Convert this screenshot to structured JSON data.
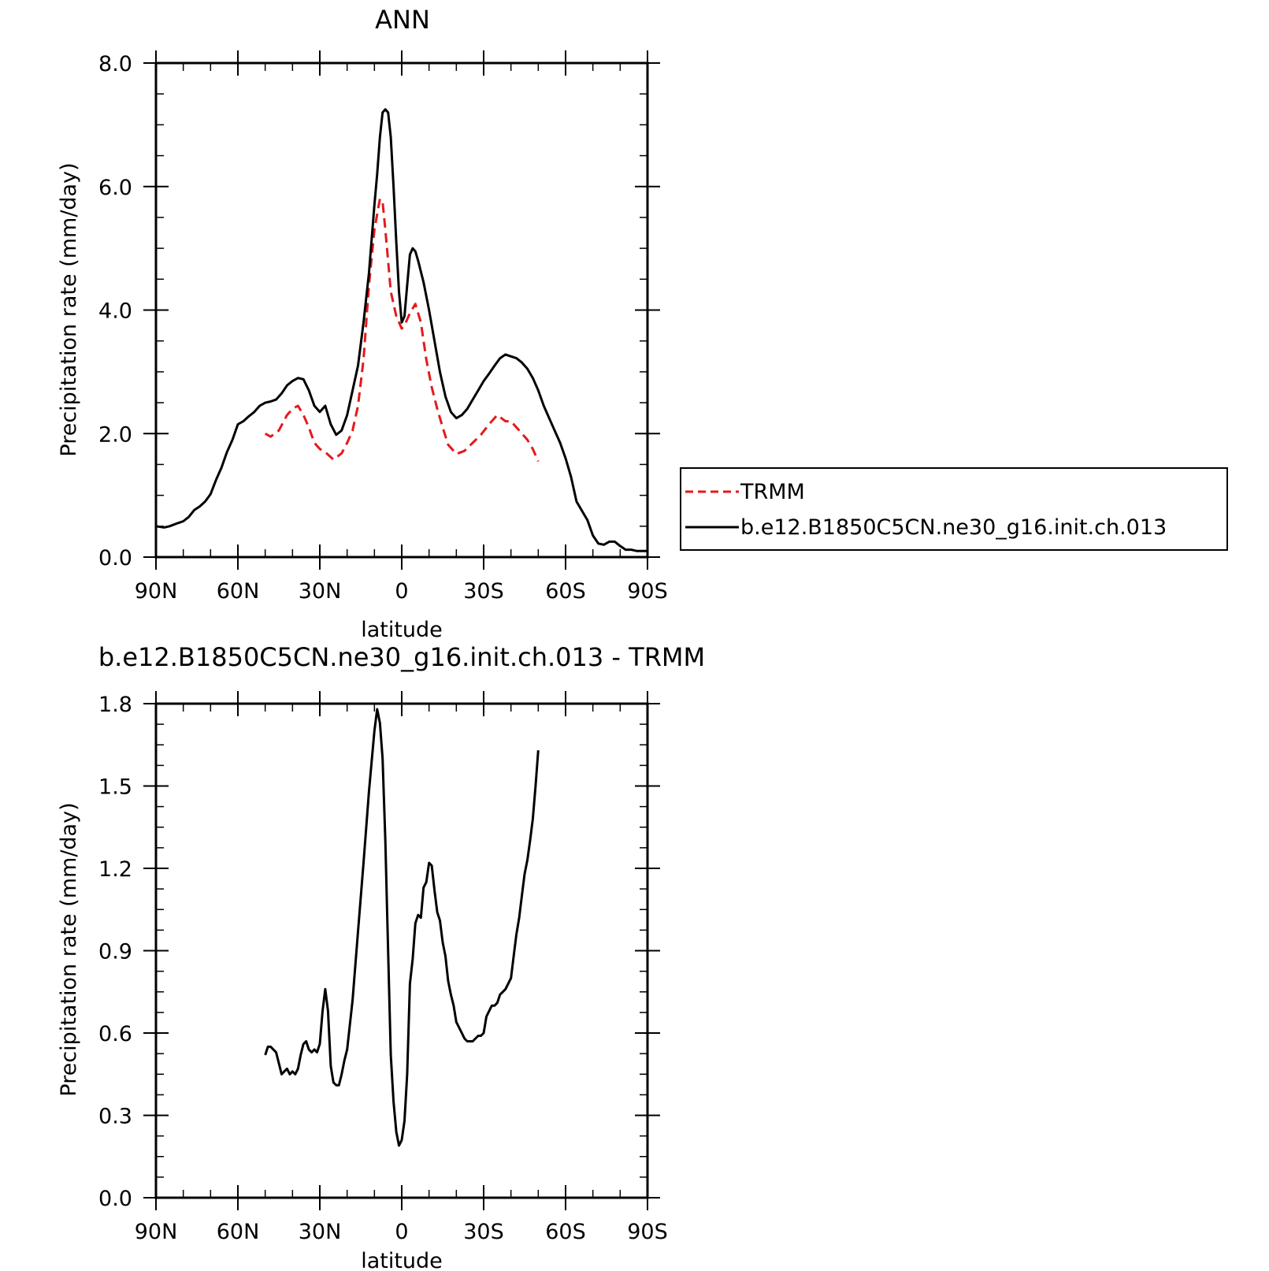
{
  "chart_data": [
    {
      "type": "line",
      "title": "ANN",
      "xlabel": "latitude",
      "ylabel": "Precipitation rate (mm/day)",
      "xlim": [
        90,
        -90
      ],
      "ylim": [
        0,
        8
      ],
      "xticks": [
        90,
        60,
        30,
        0,
        -30,
        -60,
        -90
      ],
      "xtick_labels": [
        "90N",
        "60N",
        "30N",
        "0",
        "30S",
        "60S",
        "90S"
      ],
      "yticks": [
        0,
        2,
        4,
        6,
        8
      ],
      "ytick_labels": [
        "0.0",
        "2.0",
        "4.0",
        "6.0",
        "8.0"
      ],
      "legend": "right",
      "series": [
        {
          "name": "TRMM",
          "color": "#e31a1c",
          "dash": true,
          "x": [
            50,
            48,
            45,
            42,
            40,
            38,
            36,
            34,
            32,
            30,
            28,
            25,
            22,
            20,
            18,
            16,
            14,
            12,
            10,
            8,
            7,
            6,
            5,
            4,
            2,
            0,
            -1,
            -3,
            -5,
            -7,
            -9,
            -11,
            -13,
            -15,
            -17,
            -20,
            -23,
            -26,
            -29,
            -32,
            -35,
            -38,
            -40,
            -43,
            -46,
            -48,
            -50
          ],
          "y": [
            2.0,
            1.95,
            2.05,
            2.3,
            2.4,
            2.45,
            2.3,
            2.1,
            1.85,
            1.75,
            1.7,
            1.58,
            1.68,
            1.85,
            2.05,
            2.45,
            3.2,
            4.4,
            5.3,
            5.8,
            5.75,
            5.3,
            4.8,
            4.3,
            3.9,
            3.7,
            3.75,
            3.95,
            4.1,
            3.8,
            3.2,
            2.75,
            2.4,
            2.1,
            1.82,
            1.67,
            1.72,
            1.85,
            1.98,
            2.15,
            2.3,
            2.2,
            2.2,
            2.05,
            1.9,
            1.75,
            1.55
          ]
        },
        {
          "name": "b.e12.B1850C5CN.ne30_g16.init.ch.013",
          "color": "#000000",
          "dash": false,
          "x": [
            90,
            87,
            85,
            82,
            80,
            78,
            76,
            74,
            72,
            70,
            68,
            66,
            64,
            62,
            60,
            58,
            56,
            54,
            52,
            50,
            48,
            46,
            44,
            42,
            40,
            38,
            36,
            34,
            32,
            30,
            28,
            26,
            24,
            22,
            20,
            18,
            16,
            14,
            12,
            10,
            9,
            8,
            7,
            6,
            5,
            4,
            3,
            2,
            1,
            0,
            -1,
            -2,
            -3,
            -4,
            -5,
            -6,
            -8,
            -10,
            -12,
            -14,
            -16,
            -18,
            -20,
            -22,
            -24,
            -26,
            -28,
            -30,
            -32,
            -34,
            -36,
            -38,
            -40,
            -42,
            -44,
            -46,
            -48,
            -50,
            -52,
            -54,
            -56,
            -58,
            -60,
            -62,
            -64,
            -66,
            -68,
            -70,
            -72,
            -74,
            -76,
            -78,
            -80,
            -82,
            -84,
            -86,
            -88,
            -90
          ],
          "y": [
            0.5,
            0.48,
            0.5,
            0.55,
            0.58,
            0.65,
            0.76,
            0.82,
            0.9,
            1.02,
            1.25,
            1.45,
            1.7,
            1.9,
            2.15,
            2.2,
            2.28,
            2.35,
            2.45,
            2.5,
            2.52,
            2.55,
            2.65,
            2.78,
            2.85,
            2.9,
            2.88,
            2.7,
            2.45,
            2.35,
            2.45,
            2.15,
            1.98,
            2.05,
            2.3,
            2.7,
            3.1,
            3.8,
            4.6,
            5.7,
            6.2,
            6.8,
            7.2,
            7.25,
            7.2,
            6.8,
            6.0,
            5.1,
            4.3,
            3.8,
            3.9,
            4.4,
            4.9,
            5.0,
            4.95,
            4.8,
            4.45,
            4.0,
            3.5,
            3.0,
            2.6,
            2.35,
            2.25,
            2.3,
            2.4,
            2.55,
            2.7,
            2.85,
            2.97,
            3.1,
            3.22,
            3.28,
            3.25,
            3.22,
            3.15,
            3.05,
            2.9,
            2.7,
            2.45,
            2.25,
            2.05,
            1.85,
            1.6,
            1.3,
            0.9,
            0.75,
            0.6,
            0.35,
            0.22,
            0.2,
            0.25,
            0.25,
            0.18,
            0.12,
            0.12,
            0.1,
            0.1,
            0.1
          ]
        }
      ]
    },
    {
      "type": "line",
      "title": "b.e12.B1850C5CN.ne30_g16.init.ch.013 - TRMM",
      "xlabel": "latitude",
      "ylabel": "Precipitation rate (mm/day)",
      "xlim": [
        90,
        -90
      ],
      "ylim": [
        0,
        1.8
      ],
      "xticks": [
        90,
        60,
        30,
        0,
        -30,
        -60,
        -90
      ],
      "xtick_labels": [
        "90N",
        "60N",
        "30N",
        "0",
        "30S",
        "60S",
        "90S"
      ],
      "yticks": [
        0,
        0.3,
        0.6,
        0.9,
        1.2,
        1.5,
        1.8
      ],
      "ytick_labels": [
        "0.0",
        "0.3",
        "0.6",
        "0.9",
        "1.2",
        "1.5",
        "1.8"
      ],
      "series": [
        {
          "color": "#000000",
          "dash": false,
          "x": [
            50,
            49,
            48,
            46,
            44,
            43,
            42,
            41,
            40,
            39,
            38,
            37,
            36,
            35,
            34,
            33,
            32,
            31,
            30,
            29,
            28,
            27,
            26,
            25,
            24,
            23,
            22,
            21,
            20,
            18,
            16,
            14,
            12,
            10,
            9,
            8,
            7,
            6,
            5,
            4,
            3,
            2,
            1,
            0,
            -1,
            -2,
            -3,
            -4,
            -5,
            -6,
            -7,
            -8,
            -9,
            -10,
            -11,
            -12,
            -13,
            -14,
            -15,
            -16,
            -17,
            -18,
            -19,
            -20,
            -21,
            -22,
            -23,
            -24,
            -25,
            -26,
            -27,
            -28,
            -29,
            -30,
            -31,
            -32,
            -33,
            -34,
            -35,
            -36,
            -37,
            -38,
            -39,
            -40,
            -41,
            -42,
            -43,
            -44,
            -45,
            -46,
            -47,
            -48,
            -49,
            -50
          ],
          "y": [
            0.52,
            0.55,
            0.55,
            0.53,
            0.45,
            0.46,
            0.47,
            0.45,
            0.46,
            0.45,
            0.47,
            0.52,
            0.56,
            0.57,
            0.54,
            0.53,
            0.54,
            0.53,
            0.56,
            0.68,
            0.76,
            0.68,
            0.48,
            0.42,
            0.41,
            0.41,
            0.45,
            0.5,
            0.54,
            0.72,
            0.97,
            1.22,
            1.48,
            1.7,
            1.78,
            1.73,
            1.6,
            1.3,
            0.9,
            0.52,
            0.35,
            0.24,
            0.19,
            0.21,
            0.28,
            0.45,
            0.78,
            0.87,
            1.0,
            1.03,
            1.02,
            1.13,
            1.15,
            1.22,
            1.21,
            1.12,
            1.04,
            1.01,
            0.93,
            0.88,
            0.79,
            0.74,
            0.7,
            0.64,
            0.62,
            0.6,
            0.58,
            0.57,
            0.57,
            0.57,
            0.58,
            0.59,
            0.59,
            0.6,
            0.66,
            0.68,
            0.7,
            0.7,
            0.71,
            0.74,
            0.75,
            0.76,
            0.78,
            0.8,
            0.88,
            0.96,
            1.02,
            1.1,
            1.18,
            1.23,
            1.3,
            1.38,
            1.5,
            1.63
          ]
        }
      ]
    }
  ]
}
